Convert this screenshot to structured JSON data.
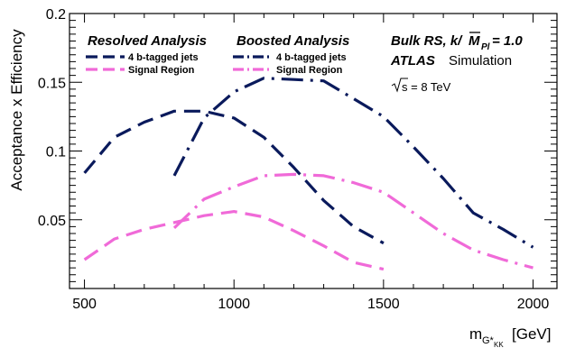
{
  "chart_data": {
    "type": "line",
    "ylabel": "Acceptance x Efficiency",
    "xlabel_main": "m",
    "xlabel_sub": "G*",
    "xlabel_subsub": "KK",
    "xlabel_unit": "[GeV]",
    "xlim": [
      450,
      2080
    ],
    "ylim": [
      0,
      0.2
    ],
    "xticks": [
      500,
      1000,
      1500,
      2000
    ],
    "xtick_labels": [
      "500",
      "1000",
      "1500",
      "2000"
    ],
    "yticks": [
      0.05,
      0.1,
      0.15,
      0.2
    ],
    "ytick_labels": [
      "0.05",
      "0.1",
      "0.15",
      "0.2"
    ],
    "legend_groups": [
      {
        "title": "Resolved Analysis",
        "items": [
          "4 b-tagged jets",
          "Signal Region"
        ]
      },
      {
        "title": "Boosted Analysis",
        "items": [
          "4 b-tagged jets",
          "Signal Region"
        ]
      }
    ],
    "series": [
      {
        "name": "4 b-tagged jets",
        "analysis": "Resolved Analysis",
        "color": "#0a1a5c",
        "style": "dashed",
        "x": [
          500,
          600,
          700,
          800,
          900,
          1000,
          1100,
          1200,
          1300,
          1400,
          1500
        ],
        "y": [
          0.084,
          0.11,
          0.121,
          0.129,
          0.129,
          0.124,
          0.11,
          0.088,
          0.064,
          0.045,
          0.033
        ]
      },
      {
        "name": "Signal Region",
        "analysis": "Resolved Analysis",
        "color": "#f06ad8",
        "style": "dashed",
        "x": [
          500,
          600,
          700,
          800,
          900,
          1000,
          1100,
          1200,
          1300,
          1400,
          1500
        ],
        "y": [
          0.021,
          0.036,
          0.043,
          0.048,
          0.053,
          0.056,
          0.052,
          0.042,
          0.031,
          0.019,
          0.014
        ]
      },
      {
        "name": "4 b-tagged jets",
        "analysis": "Boosted Analysis",
        "color": "#0a1a5c",
        "style": "dashdot",
        "x": [
          800,
          900,
          1000,
          1100,
          1200,
          1300,
          1400,
          1500,
          1600,
          1700,
          1800,
          1900,
          2000
        ],
        "y": [
          0.082,
          0.124,
          0.143,
          0.153,
          0.152,
          0.151,
          0.138,
          0.125,
          0.103,
          0.08,
          0.055,
          0.043,
          0.03
        ]
      },
      {
        "name": "Signal Region",
        "analysis": "Boosted Analysis",
        "color": "#f06ad8",
        "style": "dashdot",
        "x": [
          800,
          900,
          1000,
          1100,
          1200,
          1300,
          1400,
          1500,
          1600,
          1700,
          1800,
          1900,
          2000
        ],
        "y": [
          0.044,
          0.065,
          0.074,
          0.082,
          0.083,
          0.082,
          0.077,
          0.07,
          0.055,
          0.04,
          0.028,
          0.021,
          0.015
        ]
      }
    ],
    "annotations": {
      "model": "Bulk RS, k/",
      "model_mpl": "M",
      "model_mpl_sub": "Pl",
      "model_tail": " = 1.0",
      "experiment": "ATLAS",
      "status": "Simulation",
      "sqrt_s": "s = 8 TeV"
    },
    "grid": false,
    "legend_position": "top"
  }
}
